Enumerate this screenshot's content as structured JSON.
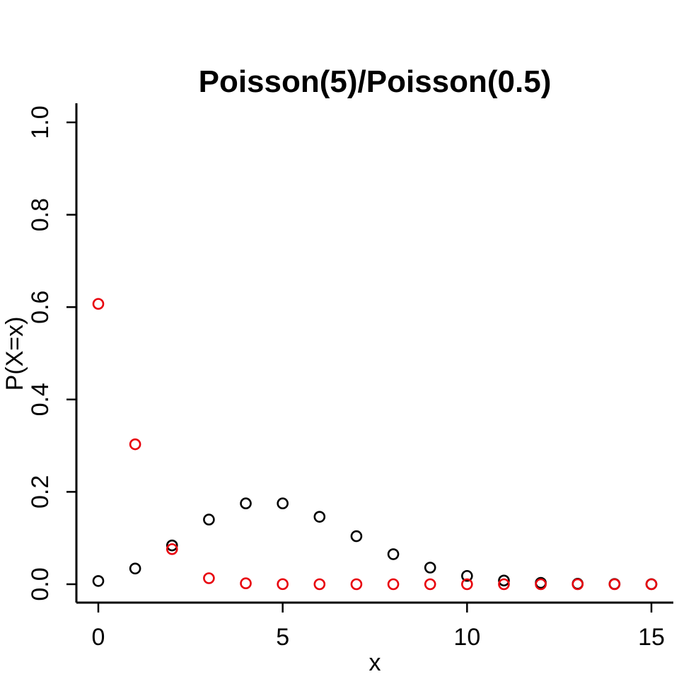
{
  "chart_data": {
    "type": "scatter",
    "title": "Poisson(5)/Poisson(0.5)",
    "xlabel": "x",
    "ylabel": "P(X=x)",
    "xlim": [
      -0.6,
      15.6
    ],
    "ylim": [
      -0.04,
      1.04
    ],
    "x_ticks": [
      "0",
      "5",
      "10",
      "15"
    ],
    "y_ticks": [
      "0.0",
      "0.2",
      "0.4",
      "0.6",
      "0.8",
      "1.0"
    ],
    "marker": "open-circle",
    "grid": false,
    "legend": "none",
    "x": [
      0,
      1,
      2,
      3,
      4,
      5,
      6,
      7,
      8,
      9,
      10,
      11,
      12,
      13,
      14,
      15
    ],
    "series": [
      {
        "color": "#000000",
        "values": [
          0.007,
          0.034,
          0.084,
          0.14,
          0.175,
          0.175,
          0.146,
          0.104,
          0.065,
          0.036,
          0.018,
          0.008,
          0.003,
          0.001,
          0.0005,
          0.0002
        ]
      },
      {
        "color": "#e8000b",
        "values": [
          0.607,
          0.303,
          0.076,
          0.013,
          0.002,
          0.0002,
          0.0,
          0.0,
          0.0,
          0.0,
          0.0,
          0.0,
          0.0,
          0.0,
          0.0,
          0.0
        ]
      }
    ]
  }
}
